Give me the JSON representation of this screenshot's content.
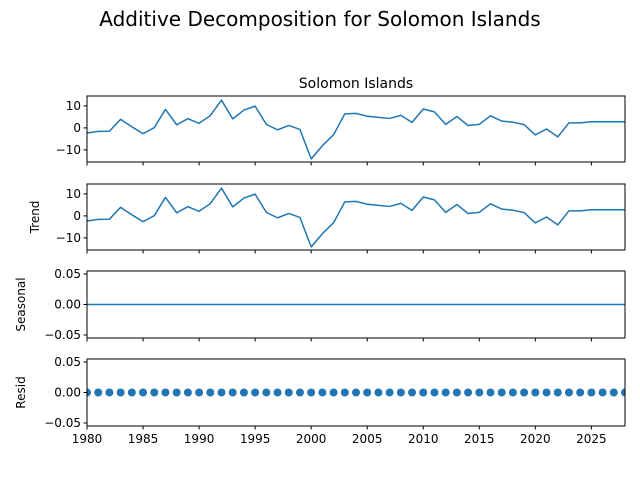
{
  "chart_data": {
    "suptitle": "Additive Decomposition for Solomon Islands",
    "panel_title": "Solomon Islands",
    "x_range": [
      1980,
      2028
    ],
    "x_ticks": [
      1980,
      1985,
      1990,
      1995,
      2000,
      2005,
      2010,
      2015,
      2020,
      2025
    ],
    "years": [
      1980,
      1981,
      1982,
      1983,
      1984,
      1985,
      1986,
      1987,
      1988,
      1989,
      1990,
      1991,
      1992,
      1993,
      1994,
      1995,
      1996,
      1997,
      1998,
      1999,
      2000,
      2001,
      2002,
      2003,
      2004,
      2005,
      2006,
      2007,
      2008,
      2009,
      2010,
      2011,
      2012,
      2013,
      2014,
      2015,
      2016,
      2017,
      2018,
      2019,
      2020,
      2021,
      2022,
      2023,
      2024,
      2025,
      2026,
      2027,
      2028
    ],
    "panels": [
      {
        "key": "observed",
        "type": "line",
        "ylabel": "",
        "ylim": [
          -15.5,
          14.5
        ],
        "yticks": [
          10,
          0,
          -10
        ],
        "color": "#1f77b4",
        "values": [
          -2.3,
          -1.6,
          -1.5,
          3.9,
          0.5,
          -2.6,
          0.1,
          8.4,
          1.4,
          4.2,
          2.1,
          5.6,
          12.6,
          4.1,
          8.1,
          9.9,
          1.6,
          -0.9,
          1.1,
          -0.7,
          -14.1,
          -8.1,
          -3.1,
          6.4,
          6.6,
          5.3,
          4.8,
          4.3,
          5.7,
          2.5,
          8.6,
          7.3,
          1.6,
          5.2,
          1.1,
          1.6,
          5.5,
          3.1,
          2.6,
          1.5,
          -3.2,
          -0.5,
          -4.1,
          2.3,
          2.3,
          2.8,
          2.8,
          2.8,
          2.8
        ]
      },
      {
        "key": "trend",
        "type": "line",
        "ylabel": "Trend",
        "ylim": [
          -15.5,
          14.5
        ],
        "yticks": [
          10,
          0,
          -10
        ],
        "color": "#1f77b4",
        "values": [
          -2.3,
          -1.6,
          -1.5,
          3.9,
          0.5,
          -2.6,
          0.1,
          8.4,
          1.4,
          4.2,
          2.1,
          5.6,
          12.6,
          4.1,
          8.1,
          9.9,
          1.6,
          -0.9,
          1.1,
          -0.7,
          -14.1,
          -8.1,
          -3.1,
          6.4,
          6.6,
          5.3,
          4.8,
          4.3,
          5.7,
          2.5,
          8.6,
          7.3,
          1.6,
          5.2,
          1.1,
          1.6,
          5.5,
          3.1,
          2.6,
          1.5,
          -3.2,
          -0.5,
          -4.1,
          2.3,
          2.3,
          2.8,
          2.8,
          2.8,
          2.8
        ]
      },
      {
        "key": "seasonal",
        "type": "line",
        "ylabel": "Seasonal",
        "ylim": [
          -0.055,
          0.055
        ],
        "yticks": [
          0.05,
          0.0,
          -0.05
        ],
        "ytick_labels": [
          "0.05",
          "0.00",
          "−0.05"
        ],
        "color": "#1f77b4",
        "value": 0.0
      },
      {
        "key": "resid",
        "type": "scatter",
        "ylabel": "Resid",
        "ylim": [
          -0.055,
          0.055
        ],
        "yticks": [
          0.05,
          0.0,
          -0.05
        ],
        "ytick_labels": [
          "0.05",
          "0.00",
          "−0.05"
        ],
        "color": "#1f77b4",
        "value": 0.0
      }
    ]
  }
}
